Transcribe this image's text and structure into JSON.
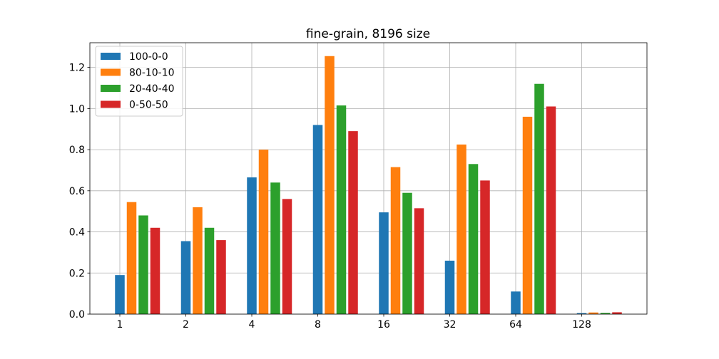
{
  "chart_data": {
    "type": "bar",
    "title": "fine-grain, 8196 size",
    "xlabel": "",
    "ylabel": "",
    "categories": [
      "1",
      "2",
      "4",
      "8",
      "16",
      "32",
      "64",
      "128"
    ],
    "series": [
      {
        "name": "100-0-0",
        "color": "#1f77b4",
        "values": [
          0.19,
          0.355,
          0.665,
          0.92,
          0.495,
          0.26,
          0.11,
          0.005
        ]
      },
      {
        "name": "80-10-10",
        "color": "#ff7f0e",
        "values": [
          0.545,
          0.52,
          0.8,
          1.255,
          0.715,
          0.825,
          0.96,
          0.008
        ]
      },
      {
        "name": "20-40-40",
        "color": "#2ca02c",
        "values": [
          0.48,
          0.42,
          0.64,
          1.015,
          0.59,
          0.73,
          1.12,
          0.006
        ]
      },
      {
        "name": "0-50-50",
        "color": "#d62728",
        "values": [
          0.42,
          0.36,
          0.56,
          0.89,
          0.515,
          0.65,
          1.01,
          0.009
        ]
      }
    ],
    "ylim": [
      0,
      1.32
    ],
    "yticks": [
      "0.0",
      "0.2",
      "0.4",
      "0.6",
      "0.8",
      "1.0",
      "1.2"
    ],
    "ytick_values": [
      0,
      0.2,
      0.4,
      0.6,
      0.8,
      1.0,
      1.2
    ],
    "grid": true,
    "legend_position": "top-left"
  }
}
